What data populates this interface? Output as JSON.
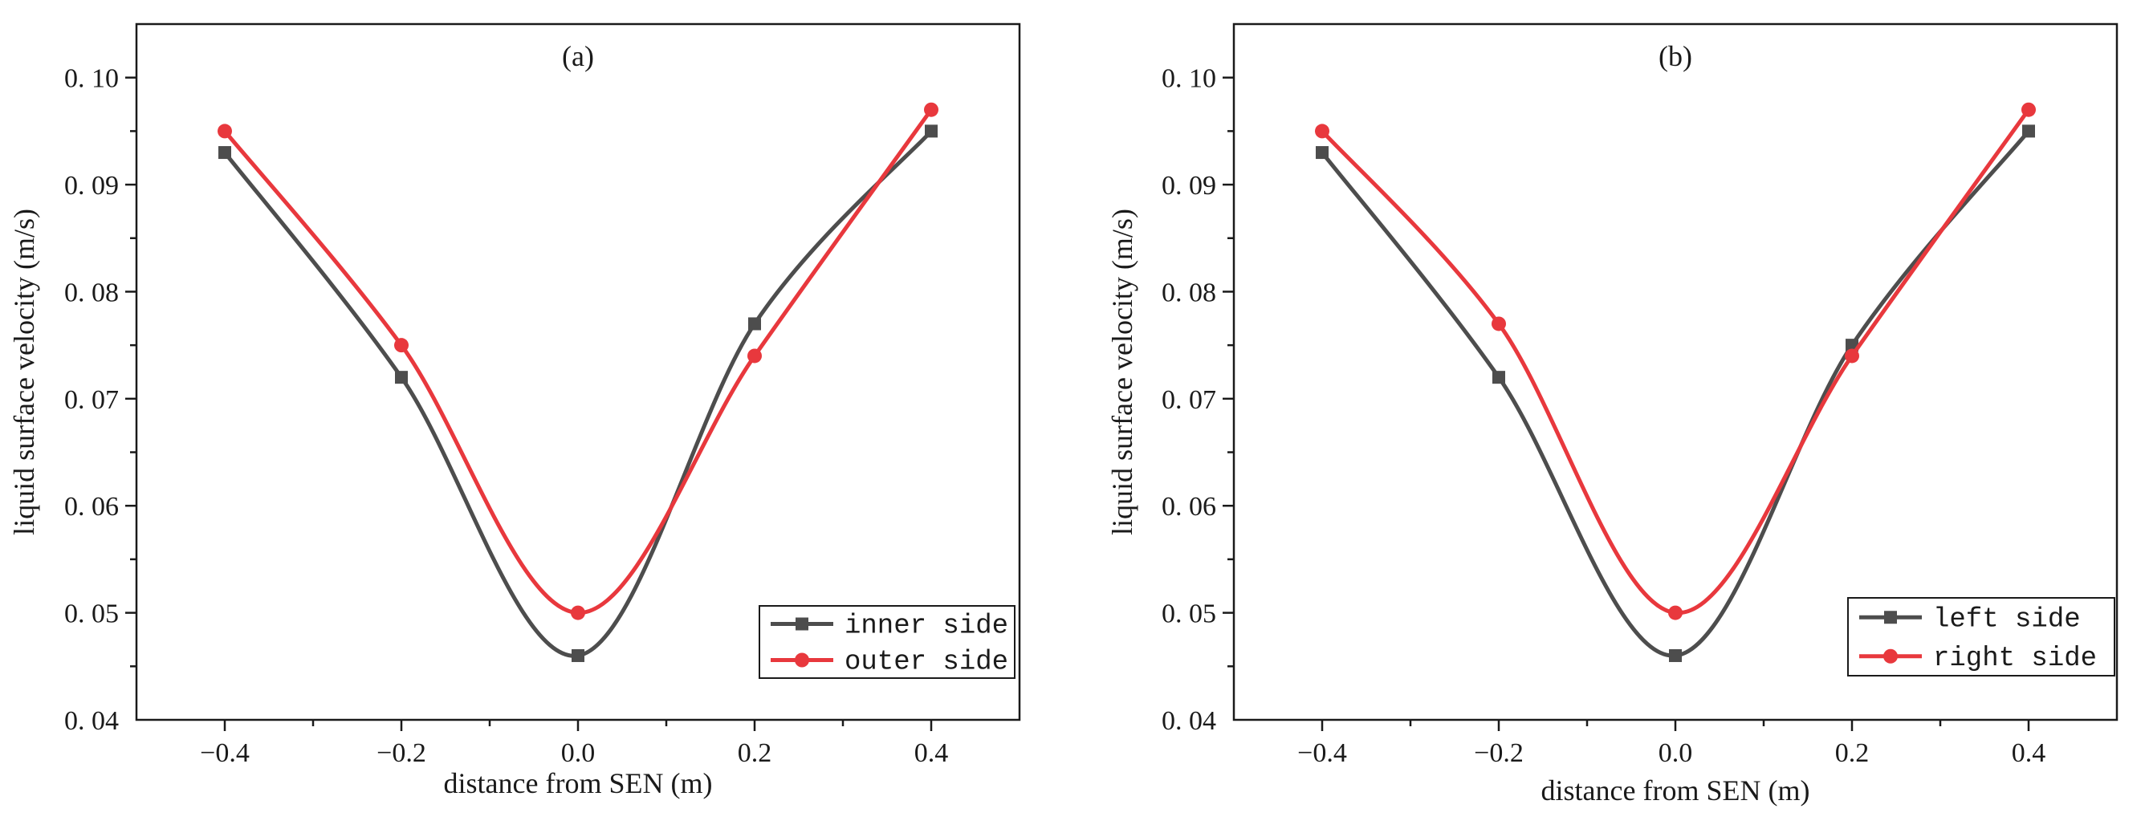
{
  "chart_data": [
    {
      "type": "line",
      "panel_label": "(a)",
      "x": [
        -0.4,
        -0.2,
        0.0,
        0.2,
        0.4
      ],
      "x_tick_labels": [
        "−0.4",
        "−0.2",
        "0.0",
        "0.2",
        "0.4"
      ],
      "y_ticks": [
        0.04,
        0.05,
        0.06,
        0.07,
        0.08,
        0.09,
        0.1
      ],
      "y_tick_labels": [
        "0. 04",
        "0. 05",
        "0. 06",
        "0. 07",
        "0. 08",
        "0. 09",
        "0. 10"
      ],
      "xlim": [
        -0.5,
        0.5
      ],
      "ylim": [
        0.04,
        0.105
      ],
      "xlabel": "distance from SEN (m)",
      "ylabel": "liquid surface velocity (m/s)",
      "legend_position": "bottom-right",
      "series": [
        {
          "name": "inner side",
          "marker": "square",
          "color": "#4d4d4d",
          "values": [
            0.093,
            0.072,
            0.046,
            0.077,
            0.095
          ]
        },
        {
          "name": "outer side",
          "marker": "circle",
          "color": "#e8383d",
          "values": [
            0.095,
            0.075,
            0.05,
            0.074,
            0.097
          ]
        }
      ]
    },
    {
      "type": "line",
      "panel_label": "(b)",
      "x": [
        -0.4,
        -0.2,
        0.0,
        0.2,
        0.4
      ],
      "x_tick_labels": [
        "−0.4",
        "−0.2",
        "0.0",
        "0.2",
        "0.4"
      ],
      "y_ticks": [
        0.04,
        0.05,
        0.06,
        0.07,
        0.08,
        0.09,
        0.1
      ],
      "y_tick_labels": [
        "0. 04",
        "0. 05",
        "0. 06",
        "0. 07",
        "0. 08",
        "0. 09",
        "0. 10"
      ],
      "xlim": [
        -0.5,
        0.5
      ],
      "ylim": [
        0.04,
        0.105
      ],
      "xlabel": "distance from SEN (m)",
      "ylabel": "liquid surface velocity (m/s)",
      "legend_position": "bottom-right",
      "series": [
        {
          "name": "left side",
          "marker": "square",
          "color": "#4d4d4d",
          "values": [
            0.093,
            0.072,
            0.046,
            0.075,
            0.095
          ]
        },
        {
          "name": "right side",
          "marker": "circle",
          "color": "#e8383d",
          "values": [
            0.095,
            0.077,
            0.05,
            0.074,
            0.097
          ]
        }
      ]
    }
  ]
}
